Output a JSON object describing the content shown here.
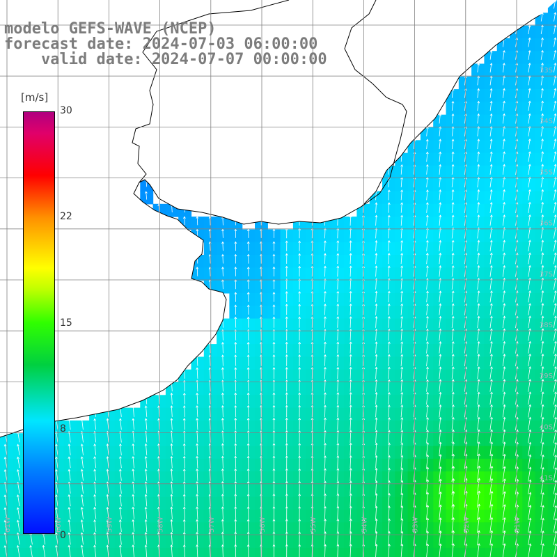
{
  "title": {
    "model": "modelo GEFS-WAVE (NCEP)",
    "forecast": "forecast date: 2024-07-03 06:00:00",
    "valid": "valid date: 2024-07-07 00:00:00"
  },
  "colorbar": {
    "unit": "[m/s]",
    "ticks": [
      "30",
      "22",
      "15",
      "8",
      "0"
    ],
    "range": [
      0,
      30
    ]
  },
  "lat_labels": [
    "33S",
    "34S",
    "35S",
    "36S",
    "37S",
    "38S",
    "39S",
    "40S",
    "41S"
  ],
  "lon_labels": [
    "61W",
    "60W",
    "59W",
    "58W",
    "57W",
    "56W",
    "55W",
    "54W",
    "53W",
    "52W",
    "51W"
  ],
  "colors": {
    "land": "#ffffff",
    "coast": "#000000",
    "grid": "#808080",
    "arrow": "#ffffff"
  }
}
